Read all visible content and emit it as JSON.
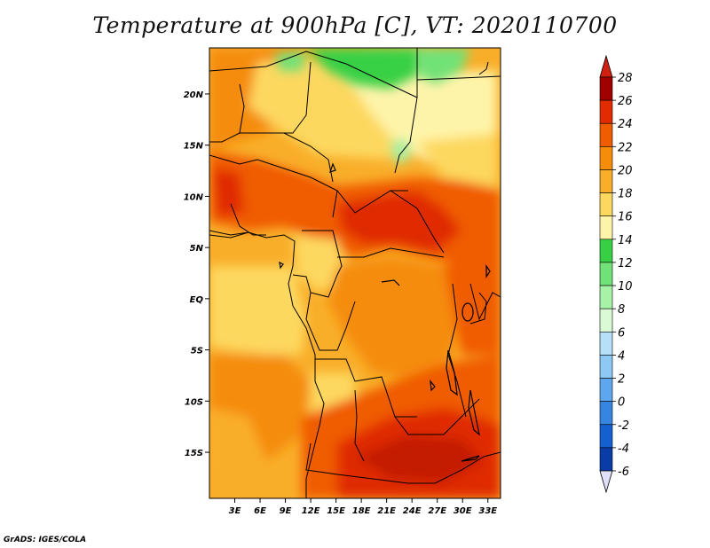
{
  "title": "Temperature at 900hPa [C], VT: 2020110700",
  "credit": "GrADS: IGES/COLA",
  "map": {
    "lon_range": [
      0,
      34.5
    ],
    "lat_range": [
      -19.5,
      24.5
    ],
    "lon_ticks": [
      {
        "value": 3,
        "label": "3E"
      },
      {
        "value": 6,
        "label": "6E"
      },
      {
        "value": 9,
        "label": "9E"
      },
      {
        "value": 12,
        "label": "12E"
      },
      {
        "value": 15,
        "label": "15E"
      },
      {
        "value": 18,
        "label": "18E"
      },
      {
        "value": 21,
        "label": "21E"
      },
      {
        "value": 24,
        "label": "24E"
      },
      {
        "value": 27,
        "label": "27E"
      },
      {
        "value": 30,
        "label": "30E"
      },
      {
        "value": 33,
        "label": "33E"
      }
    ],
    "lat_ticks": [
      {
        "value": 20,
        "label": "20N"
      },
      {
        "value": 15,
        "label": "15N"
      },
      {
        "value": 10,
        "label": "10N"
      },
      {
        "value": 5,
        "label": "5N"
      },
      {
        "value": 0,
        "label": "EQ"
      },
      {
        "value": -5,
        "label": "5S"
      },
      {
        "value": -10,
        "label": "10S"
      },
      {
        "value": -15,
        "label": "15S"
      }
    ]
  },
  "colorbar": {
    "levels": [
      "28",
      "26",
      "24",
      "22",
      "20",
      "18",
      "16",
      "14",
      "12",
      "10",
      "8",
      "6",
      "4",
      "2",
      "0",
      "-2",
      "-4",
      "-6"
    ],
    "colors": [
      "#a00000",
      "#e02c00",
      "#f05c00",
      "#f58c0a",
      "#f9ae2a",
      "#fdd85e",
      "#fef4a9",
      "#37d045",
      "#71e277",
      "#a6f2a6",
      "#d9fad4",
      "#b5e0f8",
      "#8dc9f4",
      "#5ea6ed",
      "#3585e1",
      "#1560d0",
      "#0a3ca8",
      "#0a1978"
    ],
    "over_color": "#d02010",
    "under_color": "#e0e0fa"
  }
}
